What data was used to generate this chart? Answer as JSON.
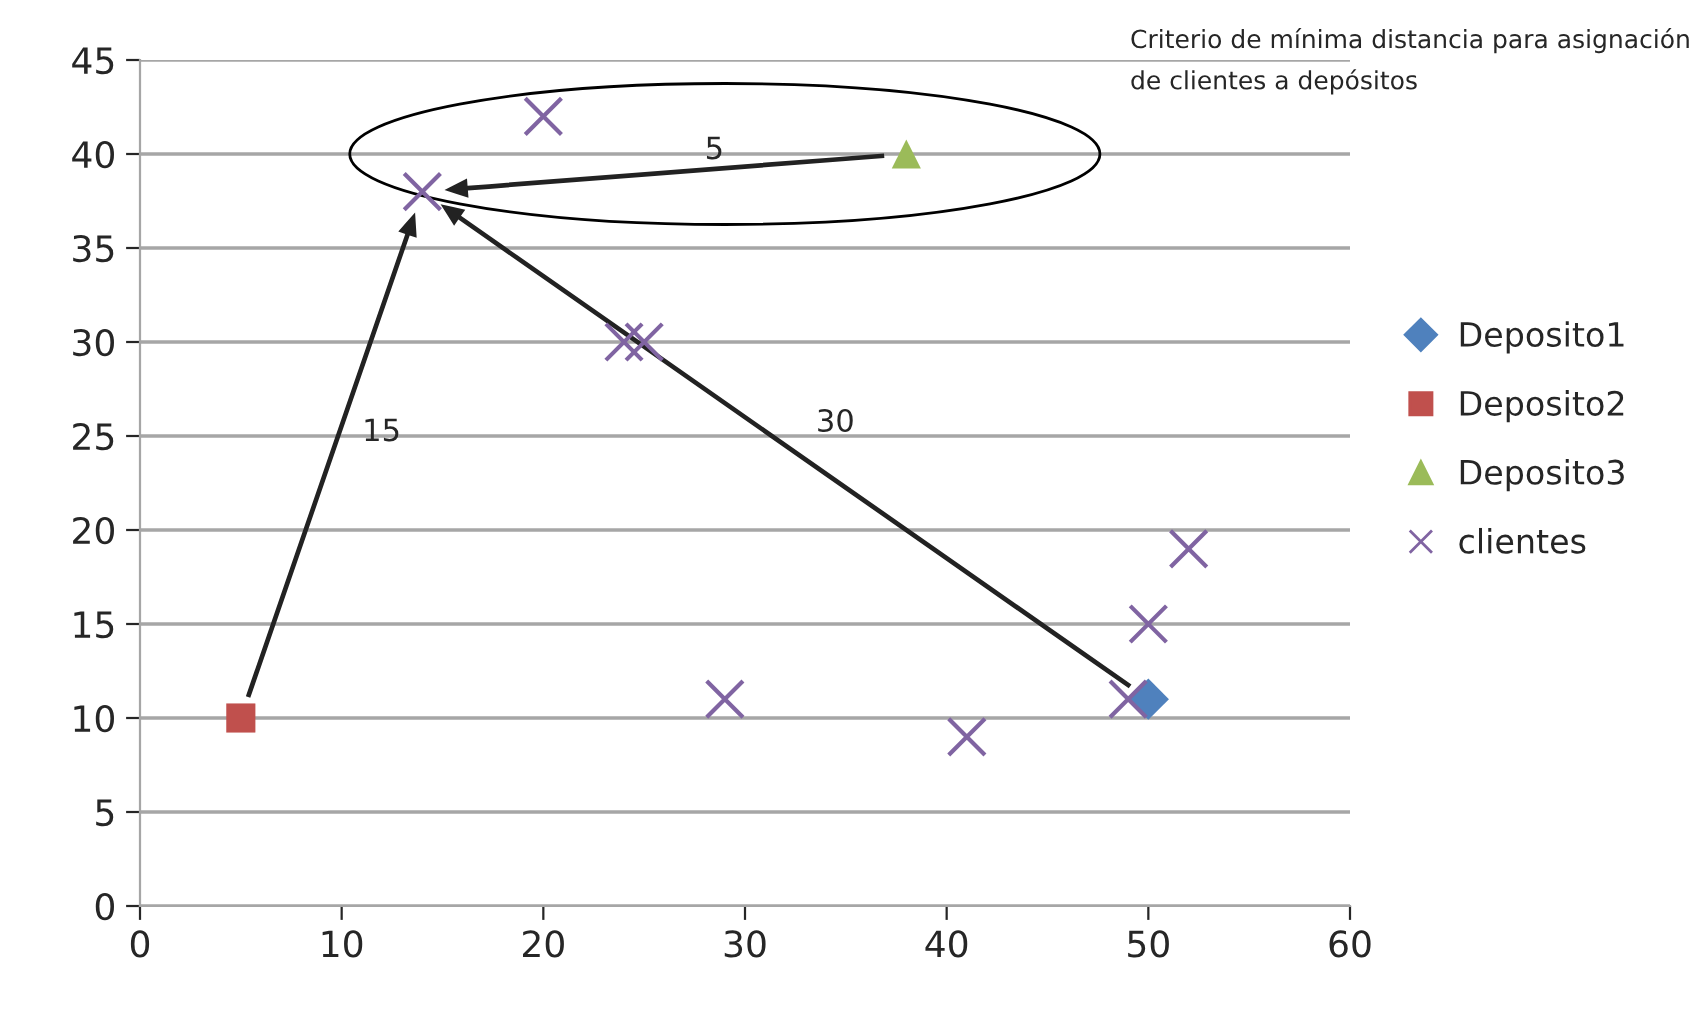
{
  "chart_data": {
    "type": "scatter",
    "title": "Criterio de mínima distancia para asignación\nde clientes a depósitos",
    "series": [
      {
        "name": "Deposito1",
        "color": "#4f81bd",
        "marker": "diamond",
        "x": [
          50
        ],
        "values": [
          11
        ]
      },
      {
        "name": "Deposito2",
        "color": "#c0504d",
        "marker": "square",
        "x": [
          5
        ],
        "values": [
          10
        ]
      },
      {
        "name": "Deposito3",
        "color": "#9bbb59",
        "marker": "triangle",
        "x": [
          38
        ],
        "values": [
          40
        ]
      },
      {
        "name": "clientes",
        "color": "#8064a2",
        "marker": "cross",
        "x": [
          14,
          20,
          24,
          25,
          29,
          41,
          49,
          50,
          52
        ],
        "values": [
          38,
          42,
          30,
          30,
          11,
          9,
          11,
          15,
          19
        ]
      }
    ],
    "annotations": [
      "30",
      "15",
      "5"
    ],
    "xlim": [
      0,
      60
    ],
    "xticks": [
      0,
      10,
      20,
      30,
      40,
      50,
      60
    ],
    "ylim": [
      0,
      45
    ],
    "yticks": [
      0,
      5,
      10,
      15,
      20,
      25,
      30,
      35,
      40,
      45
    ],
    "grid": "y",
    "legend": "right"
  }
}
